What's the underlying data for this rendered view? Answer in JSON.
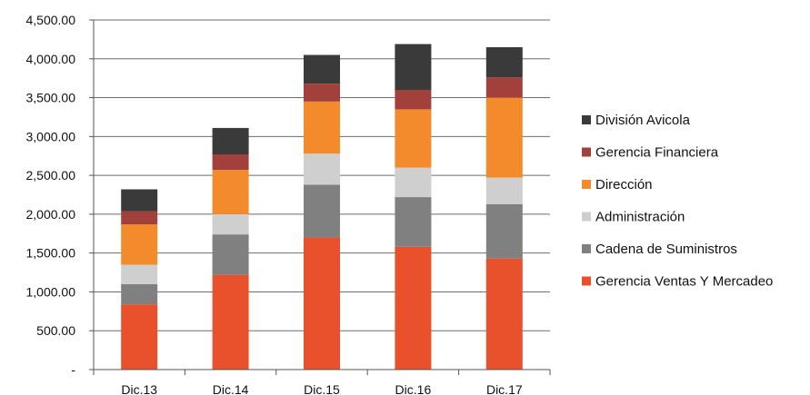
{
  "chart_data": {
    "type": "bar",
    "stacked": true,
    "categories": [
      "Dic.13",
      "Dic.14",
      "Dic.15",
      "Dic.16",
      "Dic.17"
    ],
    "ylim": [
      0,
      4500
    ],
    "yticks": [
      {
        "value": 0,
        "label": "-"
      },
      {
        "value": 500,
        "label": "500.00"
      },
      {
        "value": 1000,
        "label": "1,000.00"
      },
      {
        "value": 1500,
        "label": "1,500.00"
      },
      {
        "value": 2000,
        "label": "2,000.00"
      },
      {
        "value": 2500,
        "label": "2,500.00"
      },
      {
        "value": 3000,
        "label": "3,000.00"
      },
      {
        "value": 3500,
        "label": "3,500.00"
      },
      {
        "value": 4000,
        "label": "4,000.00"
      },
      {
        "value": 4500,
        "label": "4,500.00"
      }
    ],
    "grid": true,
    "legend_position": "right",
    "series": [
      {
        "name": "Gerencia Ventas Y Mercadeo",
        "color": "#e8512c",
        "values": [
          840,
          1220,
          1700,
          1580,
          1430
        ]
      },
      {
        "name": "Cadena de Suministros",
        "color": "#808080",
        "values": [
          260,
          520,
          680,
          640,
          700
        ]
      },
      {
        "name": "Administración",
        "color": "#cfcfcf",
        "values": [
          250,
          260,
          400,
          380,
          340
        ]
      },
      {
        "name": "Dirección",
        "color": "#f38a2c",
        "values": [
          520,
          570,
          670,
          750,
          1030
        ]
      },
      {
        "name": "Gerencia Financiera",
        "color": "#a2413b",
        "values": [
          170,
          200,
          230,
          250,
          260
        ]
      },
      {
        "name": "División Avicola",
        "color": "#3a3a3a",
        "values": [
          280,
          340,
          370,
          590,
          390
        ]
      }
    ]
  }
}
